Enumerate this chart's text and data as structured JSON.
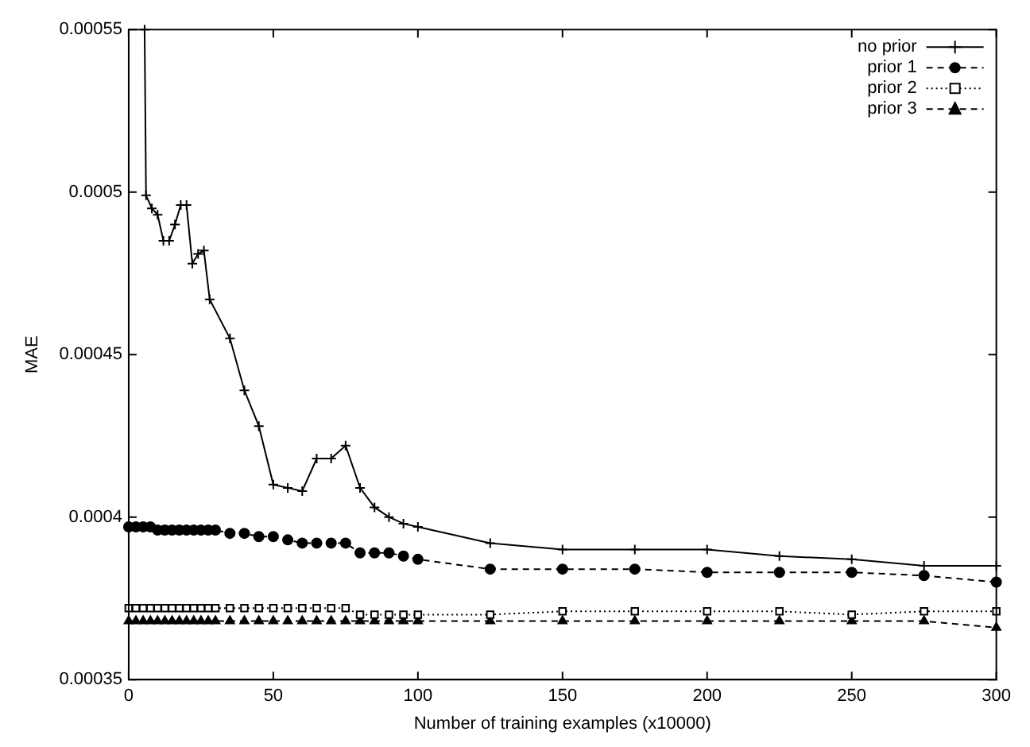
{
  "chart_data": {
    "type": "line",
    "xlabel": "Number of training examples (x10000)",
    "ylabel": "MAE",
    "xlim": [
      0,
      300
    ],
    "ylim": [
      0.00035,
      0.00055
    ],
    "xticks": [
      0,
      50,
      100,
      150,
      200,
      250,
      300
    ],
    "yticks": [
      0.00035,
      0.0004,
      0.00045,
      0.0005,
      0.00055
    ],
    "legend": "top right",
    "series": [
      {
        "name": "no prior",
        "color": "#000000",
        "marker": "cross",
        "line_style": "solid",
        "x": [
          5.5,
          6,
          8,
          10,
          12,
          14,
          16,
          18,
          20,
          22,
          24,
          26,
          28,
          35,
          40,
          45,
          50,
          55,
          60,
          65,
          70,
          75,
          80,
          85,
          90,
          95,
          100,
          125,
          150,
          175,
          200,
          225,
          250,
          275,
          300
        ],
        "values": [
          0.00055,
          0.000499,
          0.000495,
          0.000493,
          0.000485,
          0.000485,
          0.00049,
          0.000496,
          0.000496,
          0.000478,
          0.000481,
          0.000482,
          0.000467,
          0.000455,
          0.000439,
          0.000428,
          0.00041,
          0.000409,
          0.000408,
          0.000418,
          0.000418,
          0.000422,
          0.000409,
          0.000403,
          0.0004,
          0.000398,
          0.000397,
          0.000392,
          0.00039,
          0.00039,
          0.00039,
          0.000388,
          0.000387,
          0.000385,
          0.000385
        ]
      },
      {
        "name": "prior 1",
        "color": "#000000",
        "marker": "circle",
        "line_style": "dashed",
        "x": [
          0,
          2.5,
          5,
          7.5,
          10,
          12.5,
          15,
          17.5,
          20,
          22.5,
          25,
          27.5,
          30,
          35,
          40,
          45,
          50,
          55,
          60,
          65,
          70,
          75,
          80,
          85,
          90,
          95,
          100,
          125,
          150,
          175,
          200,
          225,
          250,
          275,
          300
        ],
        "values": [
          0.000397,
          0.000397,
          0.000397,
          0.000397,
          0.000396,
          0.000396,
          0.000396,
          0.000396,
          0.000396,
          0.000396,
          0.000396,
          0.000396,
          0.000396,
          0.000395,
          0.000395,
          0.000394,
          0.000394,
          0.000393,
          0.000392,
          0.000392,
          0.000392,
          0.000392,
          0.000389,
          0.000389,
          0.000389,
          0.000388,
          0.000387,
          0.000384,
          0.000384,
          0.000384,
          0.000383,
          0.000383,
          0.000383,
          0.000382,
          0.00038
        ]
      },
      {
        "name": "prior 2",
        "color": "#000000",
        "marker": "square",
        "line_style": "dotted",
        "x": [
          0,
          2.5,
          5,
          7.5,
          10,
          12.5,
          15,
          17.5,
          20,
          22.5,
          25,
          27.5,
          30,
          35,
          40,
          45,
          50,
          55,
          60,
          65,
          70,
          75,
          80,
          85,
          90,
          95,
          100,
          125,
          150,
          175,
          200,
          225,
          250,
          275,
          300
        ],
        "values": [
          0.000372,
          0.000372,
          0.000372,
          0.000372,
          0.000372,
          0.000372,
          0.000372,
          0.000372,
          0.000372,
          0.000372,
          0.000372,
          0.000372,
          0.000372,
          0.000372,
          0.000372,
          0.000372,
          0.000372,
          0.000372,
          0.000372,
          0.000372,
          0.000372,
          0.000372,
          0.00037,
          0.00037,
          0.00037,
          0.00037,
          0.00037,
          0.00037,
          0.000371,
          0.000371,
          0.000371,
          0.000371,
          0.00037,
          0.000371,
          0.000371
        ]
      },
      {
        "name": "prior 3",
        "color": "#000000",
        "marker": "triangle",
        "line_style": "dashed",
        "x": [
          0,
          2.5,
          5,
          7.5,
          10,
          12.5,
          15,
          17.5,
          20,
          22.5,
          25,
          27.5,
          30,
          35,
          40,
          45,
          50,
          55,
          60,
          65,
          70,
          75,
          80,
          85,
          90,
          95,
          100,
          125,
          150,
          175,
          200,
          225,
          250,
          275,
          300
        ],
        "values": [
          0.000368,
          0.000368,
          0.000368,
          0.000368,
          0.000368,
          0.000368,
          0.000368,
          0.000368,
          0.000368,
          0.000368,
          0.000368,
          0.000368,
          0.000368,
          0.000368,
          0.000368,
          0.000368,
          0.000368,
          0.000368,
          0.000368,
          0.000368,
          0.000368,
          0.000368,
          0.000368,
          0.000368,
          0.000368,
          0.000368,
          0.000368,
          0.000368,
          0.000368,
          0.000368,
          0.000368,
          0.000368,
          0.000368,
          0.000368,
          0.000366
        ]
      }
    ]
  }
}
